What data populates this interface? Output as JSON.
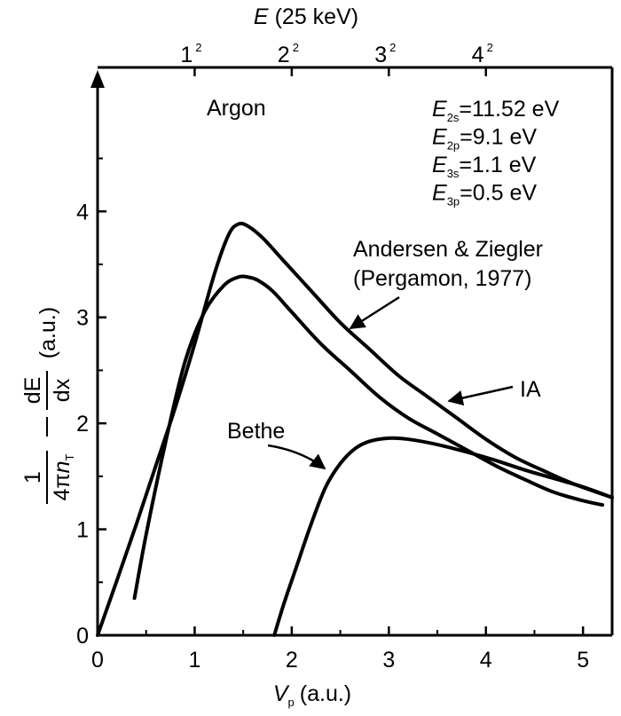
{
  "chart_data": {
    "type": "line",
    "title": "",
    "xlabel": {
      "symbol": "V",
      "subscript": "p",
      "unit": "(a.u.)"
    },
    "x2label": {
      "symbol": "E",
      "unit": "(25 keV)"
    },
    "ylabel": {
      "numerator": "1",
      "denominator_prefix": "4π",
      "denominator_symbol": "n",
      "denominator_subscript": "T",
      "derivative_numerator": "dE",
      "derivative_denominator": "dx",
      "unit": "(a.u.)"
    },
    "xlim": [
      0,
      5.3
    ],
    "ylim": [
      0,
      5.3
    ],
    "xticks": [
      0,
      1,
      2,
      3,
      4,
      5
    ],
    "xtick_labels": [
      "0",
      "1",
      "2",
      "3",
      "4",
      "5"
    ],
    "yticks": [
      0,
      1,
      2,
      3,
      4
    ],
    "ytick_labels": [
      "0",
      "1",
      "2",
      "3",
      "4"
    ],
    "top_ticks": [
      {
        "x": 1,
        "base": "1",
        "exp": "2"
      },
      {
        "x": 2,
        "base": "2",
        "exp": "2"
      },
      {
        "x": 3,
        "base": "3",
        "exp": "2"
      },
      {
        "x": 4,
        "base": "4",
        "exp": "2"
      }
    ],
    "grid": false,
    "series": [
      {
        "name": "IA",
        "x": [
          0,
          0.2,
          0.4,
          0.6,
          0.8,
          1.0,
          1.2,
          1.35,
          1.45,
          1.55,
          1.7,
          1.9,
          2.2,
          2.5,
          2.8,
          3.1,
          3.4,
          3.7,
          4.0,
          4.3,
          4.6,
          4.9,
          5.3
        ],
        "y": [
          0,
          0.52,
          1.05,
          1.6,
          2.15,
          2.75,
          3.4,
          3.78,
          3.88,
          3.86,
          3.75,
          3.55,
          3.25,
          2.95,
          2.7,
          2.45,
          2.25,
          2.05,
          1.85,
          1.68,
          1.55,
          1.43,
          1.3
        ]
      },
      {
        "name": "Andersen & Ziegler (Pergamon, 1977)",
        "x": [
          0.38,
          0.5,
          0.7,
          0.9,
          1.1,
          1.3,
          1.45,
          1.55,
          1.65,
          1.8,
          2.0,
          2.3,
          2.6,
          2.9,
          3.2,
          3.5,
          3.8,
          4.1,
          4.4,
          4.7,
          5.0,
          5.2
        ],
        "y": [
          0.35,
          0.95,
          1.82,
          2.58,
          3.05,
          3.3,
          3.38,
          3.38,
          3.35,
          3.25,
          3.05,
          2.75,
          2.5,
          2.25,
          2.05,
          1.9,
          1.75,
          1.6,
          1.47,
          1.35,
          1.27,
          1.23
        ]
      },
      {
        "name": "Bethe",
        "x": [
          1.82,
          1.92,
          2.05,
          2.2,
          2.35,
          2.5,
          2.65,
          2.8,
          3.0,
          3.2,
          3.5,
          3.8,
          4.1,
          4.4,
          4.7,
          5.0,
          5.3
        ],
        "y": [
          0,
          0.3,
          0.65,
          1.05,
          1.4,
          1.62,
          1.76,
          1.83,
          1.86,
          1.85,
          1.8,
          1.73,
          1.65,
          1.56,
          1.48,
          1.4,
          1.3
        ]
      }
    ],
    "annotations": {
      "argon": "Argon",
      "energies": [
        {
          "symbol": "E",
          "sub": "2s",
          "value": "=11.52 eV"
        },
        {
          "symbol": "E",
          "sub": "2p",
          "value": "=9.1 eV"
        },
        {
          "symbol": "E",
          "sub": "3s",
          "value": "=1.1 eV"
        },
        {
          "symbol": "E",
          "sub": "3p",
          "value": "=0.5 eV"
        }
      ],
      "az_line1": "Andersen & Ziegler",
      "az_line2": "(Pergamon, 1977)",
      "ia": "IA",
      "bethe": "Bethe"
    }
  }
}
